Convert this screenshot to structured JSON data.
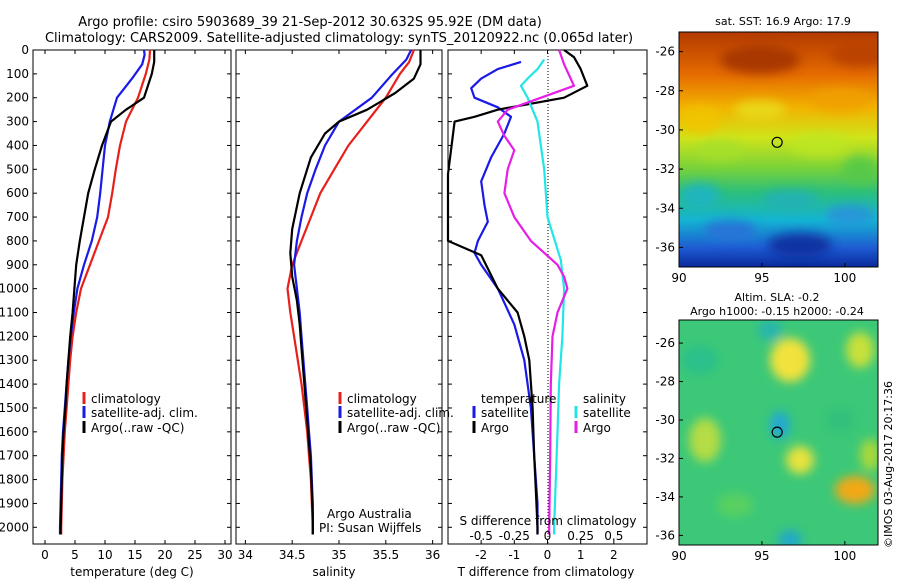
{
  "title": {
    "line1": "Argo profile: csiro 5903689_39 21-Sep-2012 30.632S 95.92E (DM data)",
    "line2": "Climatology: CARS2009. Satellite-adjusted climatology: synTS_20120922.nc (0.065d later)"
  },
  "colors": {
    "climatology": "#e8201a",
    "satellite": "#1a1ae6",
    "argo": "#000000",
    "sat_salinity": "#22e6e6",
    "argo_salinity": "#e61ee6"
  },
  "chart_data": [
    {
      "id": "temperature",
      "type": "line",
      "xlabel": "temperature (deg C)",
      "xlim": [
        -2,
        31
      ],
      "xticks": [
        0,
        5,
        10,
        15,
        20,
        25,
        30
      ],
      "ylim": [
        2070,
        0
      ],
      "yticks": [
        0,
        100,
        200,
        300,
        400,
        500,
        600,
        700,
        800,
        900,
        1000,
        1100,
        1200,
        1300,
        1400,
        1500,
        1600,
        1700,
        1800,
        1900,
        2000
      ],
      "legend": {
        "items": [
          "climatology",
          "satellite-adj. clim.",
          "Argo(..raw -QC)"
        ]
      },
      "series": [
        {
          "name": "climatology",
          "color": "#e8201a",
          "points": [
            [
              17.5,
              0
            ],
            [
              17.4,
              40
            ],
            [
              16.8,
              100
            ],
            [
              15.5,
              200
            ],
            [
              13.5,
              300
            ],
            [
              12.5,
              400
            ],
            [
              11.8,
              500
            ],
            [
              11.2,
              600
            ],
            [
              10.5,
              700
            ],
            [
              9.0,
              800
            ],
            [
              7.5,
              900
            ],
            [
              6.0,
              1000
            ],
            [
              5.2,
              1100
            ],
            [
              4.6,
              1200
            ],
            [
              4.2,
              1300
            ],
            [
              3.9,
              1400
            ],
            [
              3.6,
              1500
            ],
            [
              3.3,
              1600
            ],
            [
              3.1,
              1700
            ],
            [
              2.9,
              1800
            ],
            [
              2.8,
              1900
            ],
            [
              2.7,
              2000
            ],
            [
              2.7,
              2030
            ]
          ]
        },
        {
          "name": "satellite-adj. clim.",
          "color": "#1a1ae6",
          "points": [
            [
              16.5,
              0
            ],
            [
              16.6,
              20
            ],
            [
              16.2,
              60
            ],
            [
              14.5,
              120
            ],
            [
              12.0,
              200
            ],
            [
              10.8,
              300
            ],
            [
              10.0,
              400
            ],
            [
              9.6,
              500
            ],
            [
              9.2,
              600
            ],
            [
              8.7,
              700
            ],
            [
              7.8,
              800
            ],
            [
              6.5,
              900
            ],
            [
              5.4,
              1000
            ],
            [
              4.8,
              1100
            ],
            [
              4.3,
              1200
            ],
            [
              3.9,
              1300
            ],
            [
              3.6,
              1400
            ],
            [
              3.3,
              1500
            ],
            [
              3.0,
              1600
            ],
            [
              2.8,
              1700
            ],
            [
              2.7,
              1800
            ],
            [
              2.6,
              1900
            ],
            [
              2.5,
              2000
            ],
            [
              2.5,
              2030
            ]
          ]
        },
        {
          "name": "Argo(..raw -QC)",
          "color": "#000000",
          "points": [
            [
              18.2,
              0
            ],
            [
              18.2,
              50
            ],
            [
              17.8,
              100
            ],
            [
              16.5,
              200
            ],
            [
              13.5,
              250
            ],
            [
              11.0,
              300
            ],
            [
              9.5,
              400
            ],
            [
              8.3,
              500
            ],
            [
              7.2,
              600
            ],
            [
              6.5,
              700
            ],
            [
              5.8,
              800
            ],
            [
              5.2,
              900
            ],
            [
              4.9,
              1000
            ],
            [
              4.6,
              1100
            ],
            [
              4.2,
              1200
            ],
            [
              3.9,
              1300
            ],
            [
              3.6,
              1400
            ],
            [
              3.4,
              1500
            ],
            [
              3.1,
              1600
            ],
            [
              2.9,
              1700
            ],
            [
              2.8,
              1800
            ],
            [
              2.7,
              1900
            ],
            [
              2.6,
              2000
            ],
            [
              2.6,
              2030
            ]
          ]
        }
      ]
    },
    {
      "id": "salinity",
      "type": "line",
      "xlabel": "salinity",
      "xlim": [
        33.9,
        36.1
      ],
      "xticks": [
        34,
        34.5,
        35,
        35.5,
        36
      ],
      "xticklabels": [
        "34",
        "34.5",
        "35",
        "35.5",
        "36"
      ],
      "ylim": [
        2070,
        0
      ],
      "legend": {
        "items": [
          "climatology",
          "satellite-adj. clim.",
          "Argo(..raw -QC)"
        ]
      },
      "annotation": {
        "line1": "Argo Australia",
        "line2": "PI: Susan Wijffels"
      },
      "series": [
        {
          "name": "climatology",
          "color": "#e8201a",
          "points": [
            [
              35.8,
              0
            ],
            [
              35.75,
              50
            ],
            [
              35.65,
              100
            ],
            [
              35.5,
              200
            ],
            [
              35.3,
              300
            ],
            [
              35.1,
              400
            ],
            [
              34.95,
              500
            ],
            [
              34.8,
              600
            ],
            [
              34.7,
              700
            ],
            [
              34.6,
              800
            ],
            [
              34.5,
              900
            ],
            [
              34.45,
              1000
            ],
            [
              34.48,
              1100
            ],
            [
              34.52,
              1200
            ],
            [
              34.56,
              1300
            ],
            [
              34.6,
              1400
            ],
            [
              34.63,
              1500
            ],
            [
              34.66,
              1600
            ],
            [
              34.68,
              1700
            ],
            [
              34.7,
              1800
            ],
            [
              34.71,
              1900
            ],
            [
              34.72,
              2000
            ],
            [
              34.72,
              2030
            ]
          ]
        },
        {
          "name": "satellite-adj. clim.",
          "color": "#1a1ae6",
          "points": [
            [
              35.77,
              0
            ],
            [
              35.72,
              40
            ],
            [
              35.55,
              110
            ],
            [
              35.35,
              200
            ],
            [
              35.0,
              300
            ],
            [
              34.85,
              400
            ],
            [
              34.75,
              500
            ],
            [
              34.66,
              600
            ],
            [
              34.6,
              700
            ],
            [
              34.55,
              800
            ],
            [
              34.52,
              900
            ],
            [
              34.55,
              1000
            ],
            [
              34.58,
              1100
            ],
            [
              34.6,
              1200
            ],
            [
              34.62,
              1300
            ],
            [
              34.64,
              1400
            ],
            [
              34.66,
              1500
            ],
            [
              34.68,
              1600
            ],
            [
              34.7,
              1700
            ],
            [
              34.71,
              1800
            ],
            [
              34.72,
              1900
            ],
            [
              34.72,
              2000
            ],
            [
              34.72,
              2030
            ]
          ]
        },
        {
          "name": "Argo(..raw -QC)",
          "color": "#000000",
          "points": [
            [
              35.87,
              0
            ],
            [
              35.87,
              60
            ],
            [
              35.8,
              120
            ],
            [
              35.6,
              180
            ],
            [
              35.3,
              250
            ],
            [
              35.0,
              300
            ],
            [
              34.85,
              350
            ],
            [
              34.7,
              450
            ],
            [
              34.58,
              600
            ],
            [
              34.5,
              750
            ],
            [
              34.48,
              850
            ],
            [
              34.5,
              950
            ],
            [
              34.55,
              1050
            ],
            [
              34.58,
              1150
            ],
            [
              34.6,
              1250
            ],
            [
              34.62,
              1350
            ],
            [
              34.64,
              1450
            ],
            [
              34.66,
              1550
            ],
            [
              34.68,
              1650
            ],
            [
              34.7,
              1750
            ],
            [
              34.71,
              1850
            ],
            [
              34.72,
              1950
            ],
            [
              34.72,
              2030
            ]
          ]
        }
      ]
    },
    {
      "id": "difference",
      "type": "line",
      "xlabel": "T difference from climatology",
      "xlim": [
        -3.0,
        3.0
      ],
      "xticks": [
        -2,
        -1,
        0,
        1,
        2
      ],
      "top_axis": {
        "label": "S difference from climatology",
        "ticks": [
          -0.5,
          -0.25,
          0,
          0.25,
          0.5
        ],
        "ticklabels": [
          "-0.5",
          "-0.25",
          "0",
          "0.25",
          "0.5"
        ],
        "factor": 4
      },
      "ylim": [
        2070,
        0
      ],
      "legend": {
        "temperature": {
          "title": "temperature",
          "items": [
            "satellite",
            "Argo"
          ]
        },
        "salinity": {
          "title": "salinity",
          "items": [
            "satellite",
            "Argo"
          ]
        }
      },
      "series": [
        {
          "name": "temperature satellite",
          "color": "#1a1ae6",
          "points": [
            [
              -0.8,
              50
            ],
            [
              -1.5,
              80
            ],
            [
              -2.0,
              120
            ],
            [
              -2.3,
              160
            ],
            [
              -2.2,
              200
            ],
            [
              -1.5,
              240
            ],
            [
              -1.1,
              280
            ],
            [
              -1.3,
              350
            ],
            [
              -1.7,
              450
            ],
            [
              -2.0,
              550
            ],
            [
              -1.9,
              650
            ],
            [
              -1.8,
              720
            ],
            [
              -2.1,
              800
            ],
            [
              -2.2,
              850
            ],
            [
              -2.0,
              900
            ],
            [
              -1.5,
              1000
            ],
            [
              -1.0,
              1150
            ],
            [
              -0.7,
              1300
            ],
            [
              -0.5,
              1500
            ],
            [
              -0.4,
              1700
            ],
            [
              -0.3,
              1900
            ],
            [
              -0.3,
              2030
            ]
          ]
        },
        {
          "name": "temperature Argo",
          "color": "#000000",
          "points": [
            [
              0.5,
              0
            ],
            [
              0.8,
              30
            ],
            [
              1.0,
              80
            ],
            [
              1.2,
              150
            ],
            [
              0.5,
              200
            ],
            [
              -1.5,
              250
            ],
            [
              -2.2,
              280
            ],
            [
              -2.8,
              300
            ],
            [
              -3.0,
              520
            ],
            [
              -3.0,
              800
            ],
            [
              -2.0,
              860
            ],
            [
              -1.5,
              1000
            ],
            [
              -0.9,
              1100
            ],
            [
              -0.7,
              1200
            ],
            [
              -0.55,
              1300
            ],
            [
              -0.45,
              1500
            ],
            [
              -0.4,
              1700
            ],
            [
              -0.35,
              1850
            ],
            [
              -0.3,
              2000
            ],
            [
              -0.3,
              2030
            ]
          ]
        },
        {
          "name": "salinity satellite",
          "color": "#22e6e6",
          "points": [
            [
              -0.1,
              40
            ],
            [
              -0.3,
              80
            ],
            [
              -0.6,
              120
            ],
            [
              -0.8,
              150
            ],
            [
              -0.6,
              200
            ],
            [
              -0.3,
              300
            ],
            [
              -0.1,
              500
            ],
            [
              0.0,
              700
            ],
            [
              0.4,
              880
            ],
            [
              0.5,
              1000
            ],
            [
              0.45,
              1200
            ],
            [
              0.35,
              1400
            ],
            [
              0.3,
              1600
            ],
            [
              0.25,
              1800
            ],
            [
              0.2,
              2000
            ],
            [
              0.2,
              2030
            ]
          ]
        },
        {
          "name": "salinity Argo",
          "color": "#e61ee6",
          "points": [
            [
              0.35,
              0
            ],
            [
              0.5,
              60
            ],
            [
              0.8,
              150
            ],
            [
              -1.2,
              250
            ],
            [
              -1.5,
              300
            ],
            [
              -1.3,
              360
            ],
            [
              -1.0,
              420
            ],
            [
              -1.2,
              500
            ],
            [
              -1.3,
              600
            ],
            [
              -1.0,
              700
            ],
            [
              -0.5,
              800
            ],
            [
              0.3,
              900
            ],
            [
              0.5,
              950
            ],
            [
              0.6,
              1000
            ],
            [
              0.3,
              1100
            ],
            [
              0.15,
              1200
            ],
            [
              0.1,
              1400
            ],
            [
              0.08,
              1700
            ],
            [
              0.05,
              2000
            ],
            [
              0.05,
              2030
            ]
          ]
        }
      ]
    },
    {
      "id": "sst_map",
      "type": "heatmap",
      "title": "sat. SST: 16.9 Argo: 17.9",
      "xlim": [
        90,
        102
      ],
      "ylim": [
        -37,
        -25
      ],
      "xticks": [
        90,
        95,
        100
      ],
      "yticks": [
        -26,
        -28,
        -30,
        -32,
        -34,
        -36
      ],
      "marker": {
        "lon": 95.92,
        "lat": -30.632
      }
    },
    {
      "id": "sla_map",
      "type": "heatmap",
      "title_line1": "Altim. SLA: -0.2",
      "title_line2": "Argo h1000: -0.15 h2000: -0.24",
      "xlim": [
        90,
        102
      ],
      "ylim": [
        -36.5,
        -24.8
      ],
      "xticks": [
        90,
        95,
        100
      ],
      "yticks": [
        -26,
        -28,
        -30,
        -32,
        -34,
        -36
      ],
      "marker": {
        "lon": 95.92,
        "lat": -30.632
      }
    }
  ],
  "watermark": "©IMOS 03-Aug-2017 20:17:36"
}
